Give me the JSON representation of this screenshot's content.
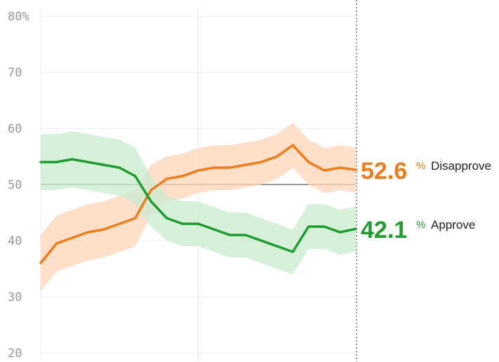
{
  "chart_data": {
    "type": "line",
    "ylim": [
      20,
      80
    ],
    "yticks": [
      {
        "value": 80,
        "label": "80%"
      },
      {
        "value": 70,
        "label": "70"
      },
      {
        "value": 60,
        "label": "60"
      },
      {
        "value": 50,
        "label": "50"
      },
      {
        "value": 40,
        "label": "40"
      },
      {
        "value": 30,
        "label": "30"
      },
      {
        "value": 20,
        "label": "20"
      }
    ],
    "x": [
      0,
      5,
      10,
      15,
      20,
      25,
      30,
      35,
      40,
      45,
      50,
      55,
      60,
      65,
      70,
      75,
      80,
      85,
      90,
      95,
      100
    ],
    "grid": true,
    "reference_line": 50,
    "series": [
      {
        "name": "Disapprove",
        "color": "#f27b1a",
        "band_color": "#fdd6b8",
        "values": [
          36,
          39.5,
          40.5,
          41.5,
          42,
          43,
          44,
          49,
          51,
          51.5,
          52.5,
          53,
          53,
          53.5,
          54,
          55,
          57,
          54,
          52.5,
          53,
          52.6
        ],
        "band": [
          5,
          5,
          5,
          5,
          5,
          5,
          5,
          4.5,
          4,
          4,
          4,
          4,
          4,
          4,
          4,
          4,
          4,
          4,
          4,
          4,
          4
        ],
        "end_value": "52.6",
        "end_unit": "%",
        "end_label": "Disapprove"
      },
      {
        "name": "Approve",
        "color": "#1e9c2f",
        "band_color": "#c8ebcd",
        "values": [
          54,
          54,
          54.5,
          54,
          53.5,
          53,
          51.5,
          47,
          44,
          43,
          43,
          42,
          41,
          41,
          40,
          39,
          38,
          42.5,
          42.5,
          41.5,
          42.1
        ],
        "band": [
          5,
          5,
          5,
          5,
          5,
          5,
          5,
          4.5,
          4,
          4,
          4,
          4,
          4,
          4,
          4,
          4,
          4,
          4,
          4,
          4,
          4
        ],
        "end_value": "42.1",
        "end_unit": "%",
        "end_label": "Approve"
      }
    ]
  }
}
